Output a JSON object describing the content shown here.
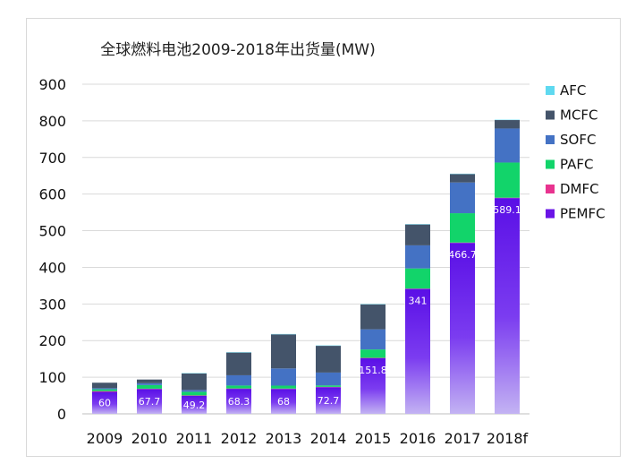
{
  "chart_data": {
    "type": "bar",
    "stacked": true,
    "title": "全球燃料电池2009-2018年出货量(MW)",
    "xlabel": "",
    "ylabel": "",
    "ylim": [
      0,
      900
    ],
    "yticks": [
      0,
      100,
      200,
      300,
      400,
      500,
      600,
      700,
      800,
      900
    ],
    "grid": true,
    "legend_position": "right",
    "categories": [
      "2009",
      "2010",
      "2011",
      "2012",
      "2013",
      "2014",
      "2015",
      "2016",
      "2017",
      "2018f"
    ],
    "series": [
      {
        "name": "PEMFC",
        "color": "#6a14e6",
        "values": [
          60,
          67.7,
          49.2,
          68.3,
          68,
          72.7,
          151.8,
          341,
          466.7,
          589.1
        ],
        "labels": [
          "60",
          "67.7",
          "49.2",
          "68.3",
          "68",
          "72.7",
          "151.8",
          "341",
          "466.7",
          "589.1"
        ]
      },
      {
        "name": "DMFC",
        "color": "#e8338f",
        "values": [
          2,
          1,
          1,
          1,
          1,
          1,
          1,
          1,
          1,
          1
        ]
      },
      {
        "name": "PAFC",
        "color": "#12d46a",
        "values": [
          5,
          10,
          10,
          8,
          8,
          4,
          23,
          55,
          80,
          96
        ]
      },
      {
        "name": "SOFC",
        "color": "#4472c4",
        "values": [
          3,
          5,
          5,
          28,
          47,
          35,
          55,
          63,
          84,
          93
        ]
      },
      {
        "name": "MCFC",
        "color": "#44546a",
        "values": [
          15,
          10,
          45,
          62,
          93,
          73,
          68,
          57,
          23,
          23
        ]
      },
      {
        "name": "AFC",
        "color": "#5fd9f0",
        "values": [
          0,
          0,
          1,
          1,
          1,
          1,
          1,
          1,
          1,
          1
        ]
      }
    ],
    "legend_order": [
      "AFC",
      "MCFC",
      "SOFC",
      "PAFC",
      "DMFC",
      "PEMFC"
    ]
  }
}
